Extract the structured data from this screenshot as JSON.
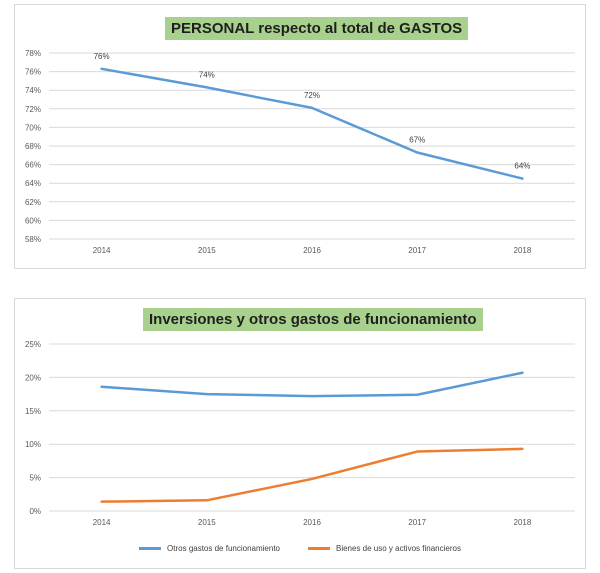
{
  "chart_data": [
    {
      "type": "line",
      "title": "PERSONAL respecto al total de GASTOS",
      "x": [
        "2014",
        "2015",
        "2016",
        "2017",
        "2018"
      ],
      "yticks": [
        "58%",
        "60%",
        "62%",
        "64%",
        "66%",
        "68%",
        "70%",
        "72%",
        "74%",
        "76%",
        "78%"
      ],
      "ylim": [
        58,
        78
      ],
      "grid": true,
      "series": [
        {
          "values": [
            76.3,
            74.3,
            72.1,
            67.3,
            64.5
          ],
          "labels": [
            "76%",
            "74%",
            "72%",
            "67%",
            "64%"
          ],
          "color": "#5b9bd5"
        }
      ]
    },
    {
      "type": "line",
      "title": "Inversiones y otros gastos de funcionamiento",
      "x": [
        "2014",
        "2015",
        "2016",
        "2017",
        "2018"
      ],
      "yticks": [
        "0%",
        "5%",
        "10%",
        "15%",
        "20%",
        "25%"
      ],
      "ylim": [
        0,
        25
      ],
      "grid": true,
      "legend": "bottom",
      "series": [
        {
          "name": "Otros gastos de funcionamiento",
          "values": [
            18.6,
            17.5,
            17.2,
            17.4,
            20.7
          ],
          "color": "#5b9bd5"
        },
        {
          "name": "Bienes de uso y activos financieros",
          "values": [
            1.4,
            1.6,
            4.8,
            8.9,
            9.3
          ],
          "color": "#ed7d31"
        }
      ]
    }
  ]
}
